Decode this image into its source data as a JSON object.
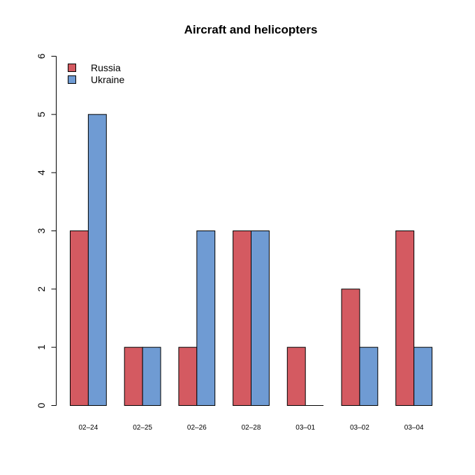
{
  "chart_data": {
    "type": "bar",
    "title": "Aircraft and helicopters",
    "categories": [
      "02-24",
      "02-25",
      "02-26",
      "02-28",
      "03-01",
      "03-02",
      "03-04"
    ],
    "category_labels": [
      "02–24",
      "02–25",
      "02–26",
      "02–28",
      "03–01",
      "03–02",
      "03–04"
    ],
    "series": [
      {
        "name": "Russia",
        "color": "#d45a61",
        "values": [
          3,
          1,
          1,
          3,
          1,
          2,
          3
        ]
      },
      {
        "name": "Ukraine",
        "color": "#6f9bd3",
        "values": [
          5,
          1,
          3,
          3,
          0,
          1,
          1
        ]
      }
    ],
    "ylim": [
      0,
      6
    ],
    "yticks": [
      0,
      1,
      2,
      3,
      4,
      5,
      6
    ],
    "xlabel": "",
    "ylabel": "",
    "legend_position": "top-left",
    "grid": false
  }
}
